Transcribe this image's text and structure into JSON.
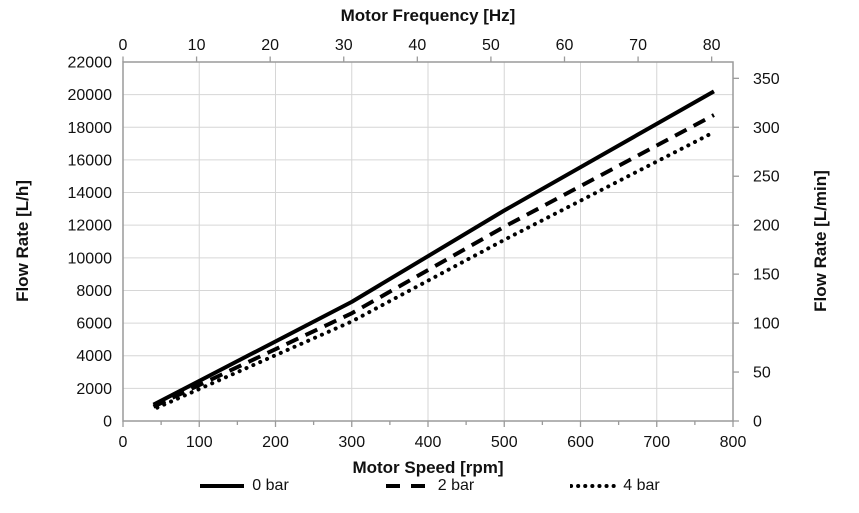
{
  "figure": {
    "background": "#ffffff",
    "axis_line_color": "#9a9a9a",
    "grid_color": "#d6d6d6",
    "text_color": "#111111",
    "series_color": "#000000"
  },
  "chart_data": {
    "type": "line",
    "title": "",
    "grid": {
      "horizontal": true,
      "vertical": true
    },
    "legend_position": "bottom-center",
    "axes": {
      "top": {
        "label": "Motor Frequency [Hz]",
        "ticks": [
          0,
          10,
          20,
          30,
          40,
          50,
          60,
          70,
          80
        ],
        "range": [
          0,
          82.9
        ]
      },
      "bottom": {
        "label": "Motor Speed [rpm]",
        "ticks": [
          0,
          100,
          200,
          300,
          400,
          500,
          600,
          700,
          800
        ],
        "minor_tick_step": 50,
        "range": [
          0,
          800
        ]
      },
      "left": {
        "label": "Flow Rate [L/h]",
        "ticks": [
          0,
          2000,
          4000,
          6000,
          8000,
          10000,
          12000,
          14000,
          16000,
          18000,
          20000,
          22000
        ],
        "range": [
          0,
          22000
        ]
      },
      "right": {
        "label": "Flow Rate [L/min]",
        "ticks": [
          0,
          50,
          100,
          150,
          200,
          250,
          300,
          350
        ],
        "range": [
          0,
          366.67
        ]
      }
    },
    "series": [
      {
        "name": "0 bar",
        "style": "solid",
        "points_rpm_lh": [
          [
            40,
            1000
          ],
          [
            300,
            7300
          ],
          [
            500,
            12900
          ],
          [
            775,
            20200
          ]
        ]
      },
      {
        "name": "2 bar",
        "style": "dashed",
        "points_rpm_lh": [
          [
            40,
            880
          ],
          [
            300,
            6600
          ],
          [
            500,
            11900
          ],
          [
            775,
            18750
          ]
        ]
      },
      {
        "name": "4 bar",
        "style": "dotted",
        "points_rpm_lh": [
          [
            45,
            820
          ],
          [
            300,
            6100
          ],
          [
            500,
            11100
          ],
          [
            775,
            17700
          ]
        ]
      }
    ]
  }
}
